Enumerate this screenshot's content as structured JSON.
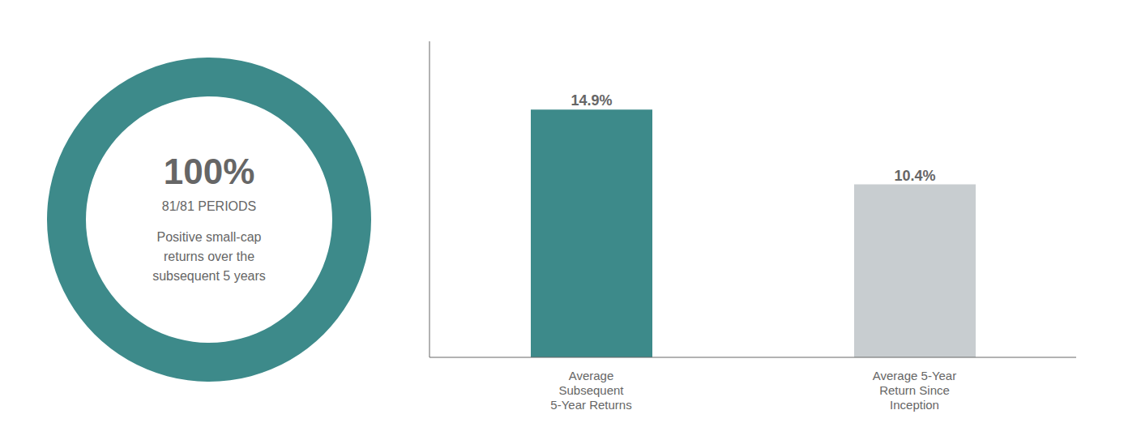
{
  "chart_data": [
    {
      "type": "pie",
      "values": [
        100
      ],
      "value_labels": [
        "100%"
      ],
      "data_labels": true,
      "color": "#3d8a8a",
      "annotations": [
        "81/81 PERIODS",
        "Positive small-cap\nreturns over the\nsubsequent 5 years"
      ]
    },
    {
      "type": "bar",
      "categories": [
        "Average\nSubsequent\n5-Year Returns",
        "Average 5-Year\nReturn Since\nInception"
      ],
      "values": [
        14.9,
        10.4
      ],
      "value_labels": [
        "14.9%",
        "10.4%"
      ],
      "data_labels": true,
      "colors": [
        "#3d8a8a",
        "#c8cdd0"
      ],
      "ylim": [
        0,
        19
      ],
      "tick_labels": "x",
      "grid": false
    }
  ]
}
